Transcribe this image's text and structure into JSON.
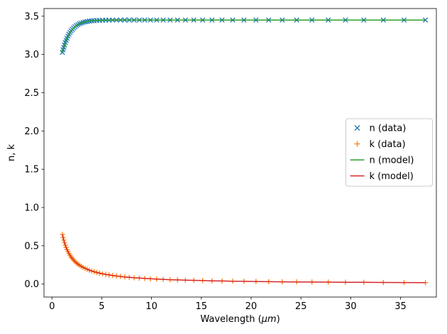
{
  "figure": {
    "background": "#ffffff",
    "xlabel_prefix": "Wavelength (",
    "xlabel_italic": "μm",
    "xlabel_suffix": ")",
    "ylabel": "n, k",
    "xlim": [
      -0.8,
      38.6
    ],
    "ylim": [
      -0.17,
      3.6
    ],
    "xticks": [
      0,
      5,
      10,
      15,
      20,
      25,
      30,
      35
    ],
    "xtick_labels": [
      "0",
      "5",
      "10",
      "15",
      "20",
      "25",
      "30",
      "35"
    ],
    "yticks": [
      0.0,
      0.5,
      1.0,
      1.5,
      2.0,
      2.5,
      3.0,
      3.5
    ],
    "ytick_labels": [
      "0.0",
      "0.5",
      "1.0",
      "1.5",
      "2.0",
      "2.5",
      "3.0",
      "3.5"
    ],
    "grid": false,
    "colors": {
      "n_data": "#1f77b4",
      "k_data": "#ff7f0e",
      "n_model": "#2ca02c",
      "k_model": "#d62728",
      "spine": "#000000",
      "legend_edge": "#cccccc",
      "legend_face": "#ffffff"
    }
  },
  "legend": {
    "position": "center right",
    "entries": [
      {
        "label": "n (data)",
        "marker": "x",
        "color": "#1f77b4"
      },
      {
        "label": "k (data)",
        "marker": "+",
        "color": "#ff7f0e"
      },
      {
        "label": "n (model)",
        "marker": "line",
        "color": "#2ca02c"
      },
      {
        "label": "k (model)",
        "marker": "line",
        "color": "#d62728"
      }
    ]
  },
  "chart_data": {
    "type": "scatter",
    "title": "",
    "xlabel": "Wavelength (μm)",
    "ylabel": "n, k",
    "xlim": [
      -0.8,
      38.6
    ],
    "ylim": [
      -0.17,
      3.6
    ],
    "x": [
      1.05,
      1.116,
      1.185,
      1.259,
      1.338,
      1.422,
      1.511,
      1.605,
      1.705,
      1.812,
      1.925,
      2.045,
      2.173,
      2.309,
      2.453,
      2.607,
      2.77,
      2.943,
      3.127,
      3.322,
      3.53,
      3.751,
      3.985,
      4.234,
      4.499,
      4.78,
      5.079,
      5.396,
      5.734,
      6.092,
      6.473,
      6.878,
      7.308,
      7.765,
      8.25,
      8.766,
      9.314,
      9.896,
      10.515,
      11.172,
      11.87,
      12.612,
      13.401,
      14.239,
      15.129,
      16.074,
      17.079,
      18.147,
      19.281,
      20.487,
      21.767,
      23.128,
      24.574,
      26.11,
      27.742,
      29.476,
      31.319,
      33.277,
      35.357,
      37.5
    ],
    "series": [
      {
        "name": "n (data)",
        "type": "scatter",
        "marker": "x",
        "color": "#1f77b4",
        "values": [
          3.027,
          3.061,
          3.093,
          3.124,
          3.155,
          3.184,
          3.212,
          3.239,
          3.264,
          3.287,
          3.308,
          3.328,
          3.346,
          3.362,
          3.377,
          3.39,
          3.401,
          3.41,
          3.419,
          3.425,
          3.431,
          3.436,
          3.439,
          3.442,
          3.444,
          3.446,
          3.447,
          3.448,
          3.449,
          3.449,
          3.45,
          3.45,
          3.45,
          3.45,
          3.45,
          3.45,
          3.45,
          3.45,
          3.45,
          3.45,
          3.45,
          3.45,
          3.45,
          3.45,
          3.45,
          3.45,
          3.45,
          3.45,
          3.45,
          3.45,
          3.45,
          3.45,
          3.45,
          3.45,
          3.45,
          3.45,
          3.45,
          3.45,
          3.45,
          3.45
        ]
      },
      {
        "name": "k (data)",
        "type": "scatter",
        "marker": "+",
        "color": "#ff7f0e",
        "values": [
          0.648,
          0.609,
          0.574,
          0.54,
          0.508,
          0.478,
          0.45,
          0.424,
          0.399,
          0.375,
          0.353,
          0.333,
          0.313,
          0.294,
          0.277,
          0.261,
          0.245,
          0.231,
          0.217,
          0.205,
          0.193,
          0.181,
          0.171,
          0.161,
          0.151,
          0.142,
          0.134,
          0.126,
          0.119,
          0.112,
          0.105,
          0.099,
          0.093,
          0.088,
          0.082,
          0.078,
          0.073,
          0.069,
          0.065,
          0.061,
          0.057,
          0.054,
          0.051,
          0.048,
          0.045,
          0.042,
          0.04,
          0.037,
          0.035,
          0.033,
          0.031,
          0.029,
          0.028,
          0.026,
          0.025,
          0.023,
          0.022,
          0.02,
          0.019,
          0.018
        ]
      },
      {
        "name": "n (model)",
        "type": "line",
        "color": "#2ca02c",
        "values": [
          3.027,
          3.061,
          3.093,
          3.124,
          3.155,
          3.184,
          3.212,
          3.239,
          3.264,
          3.287,
          3.308,
          3.328,
          3.346,
          3.362,
          3.377,
          3.39,
          3.401,
          3.41,
          3.419,
          3.425,
          3.431,
          3.436,
          3.439,
          3.442,
          3.444,
          3.446,
          3.447,
          3.448,
          3.449,
          3.449,
          3.45,
          3.45,
          3.45,
          3.45,
          3.45,
          3.45,
          3.45,
          3.45,
          3.45,
          3.45,
          3.45,
          3.45,
          3.45,
          3.45,
          3.45,
          3.45,
          3.45,
          3.45,
          3.45,
          3.45,
          3.45,
          3.45,
          3.45,
          3.45,
          3.45,
          3.45,
          3.45,
          3.45,
          3.45,
          3.45
        ]
      },
      {
        "name": "k (model)",
        "type": "line",
        "color": "#d62728",
        "values": [
          0.648,
          0.609,
          0.574,
          0.54,
          0.508,
          0.478,
          0.45,
          0.424,
          0.399,
          0.375,
          0.353,
          0.333,
          0.313,
          0.294,
          0.277,
          0.261,
          0.245,
          0.231,
          0.217,
          0.205,
          0.193,
          0.181,
          0.171,
          0.161,
          0.151,
          0.142,
          0.134,
          0.126,
          0.119,
          0.112,
          0.105,
          0.099,
          0.093,
          0.088,
          0.082,
          0.078,
          0.073,
          0.069,
          0.065,
          0.061,
          0.057,
          0.054,
          0.051,
          0.048,
          0.045,
          0.042,
          0.04,
          0.037,
          0.035,
          0.033,
          0.031,
          0.029,
          0.028,
          0.026,
          0.025,
          0.023,
          0.022,
          0.02,
          0.019,
          0.018
        ]
      }
    ]
  }
}
